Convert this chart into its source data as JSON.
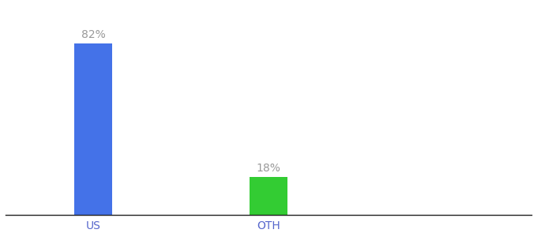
{
  "categories": [
    "US",
    "OTH"
  ],
  "values": [
    82,
    18
  ],
  "bar_colors": [
    "#4472e8",
    "#33cc33"
  ],
  "labels": [
    "82%",
    "18%"
  ],
  "background_color": "#ffffff",
  "ylim": [
    0,
    100
  ],
  "bar_width": 0.22,
  "x_positions": [
    1,
    2
  ],
  "xlim": [
    0.5,
    3.5
  ],
  "tick_fontsize": 10,
  "label_fontsize": 10,
  "label_color": "#999999",
  "tick_color": "#5566cc"
}
